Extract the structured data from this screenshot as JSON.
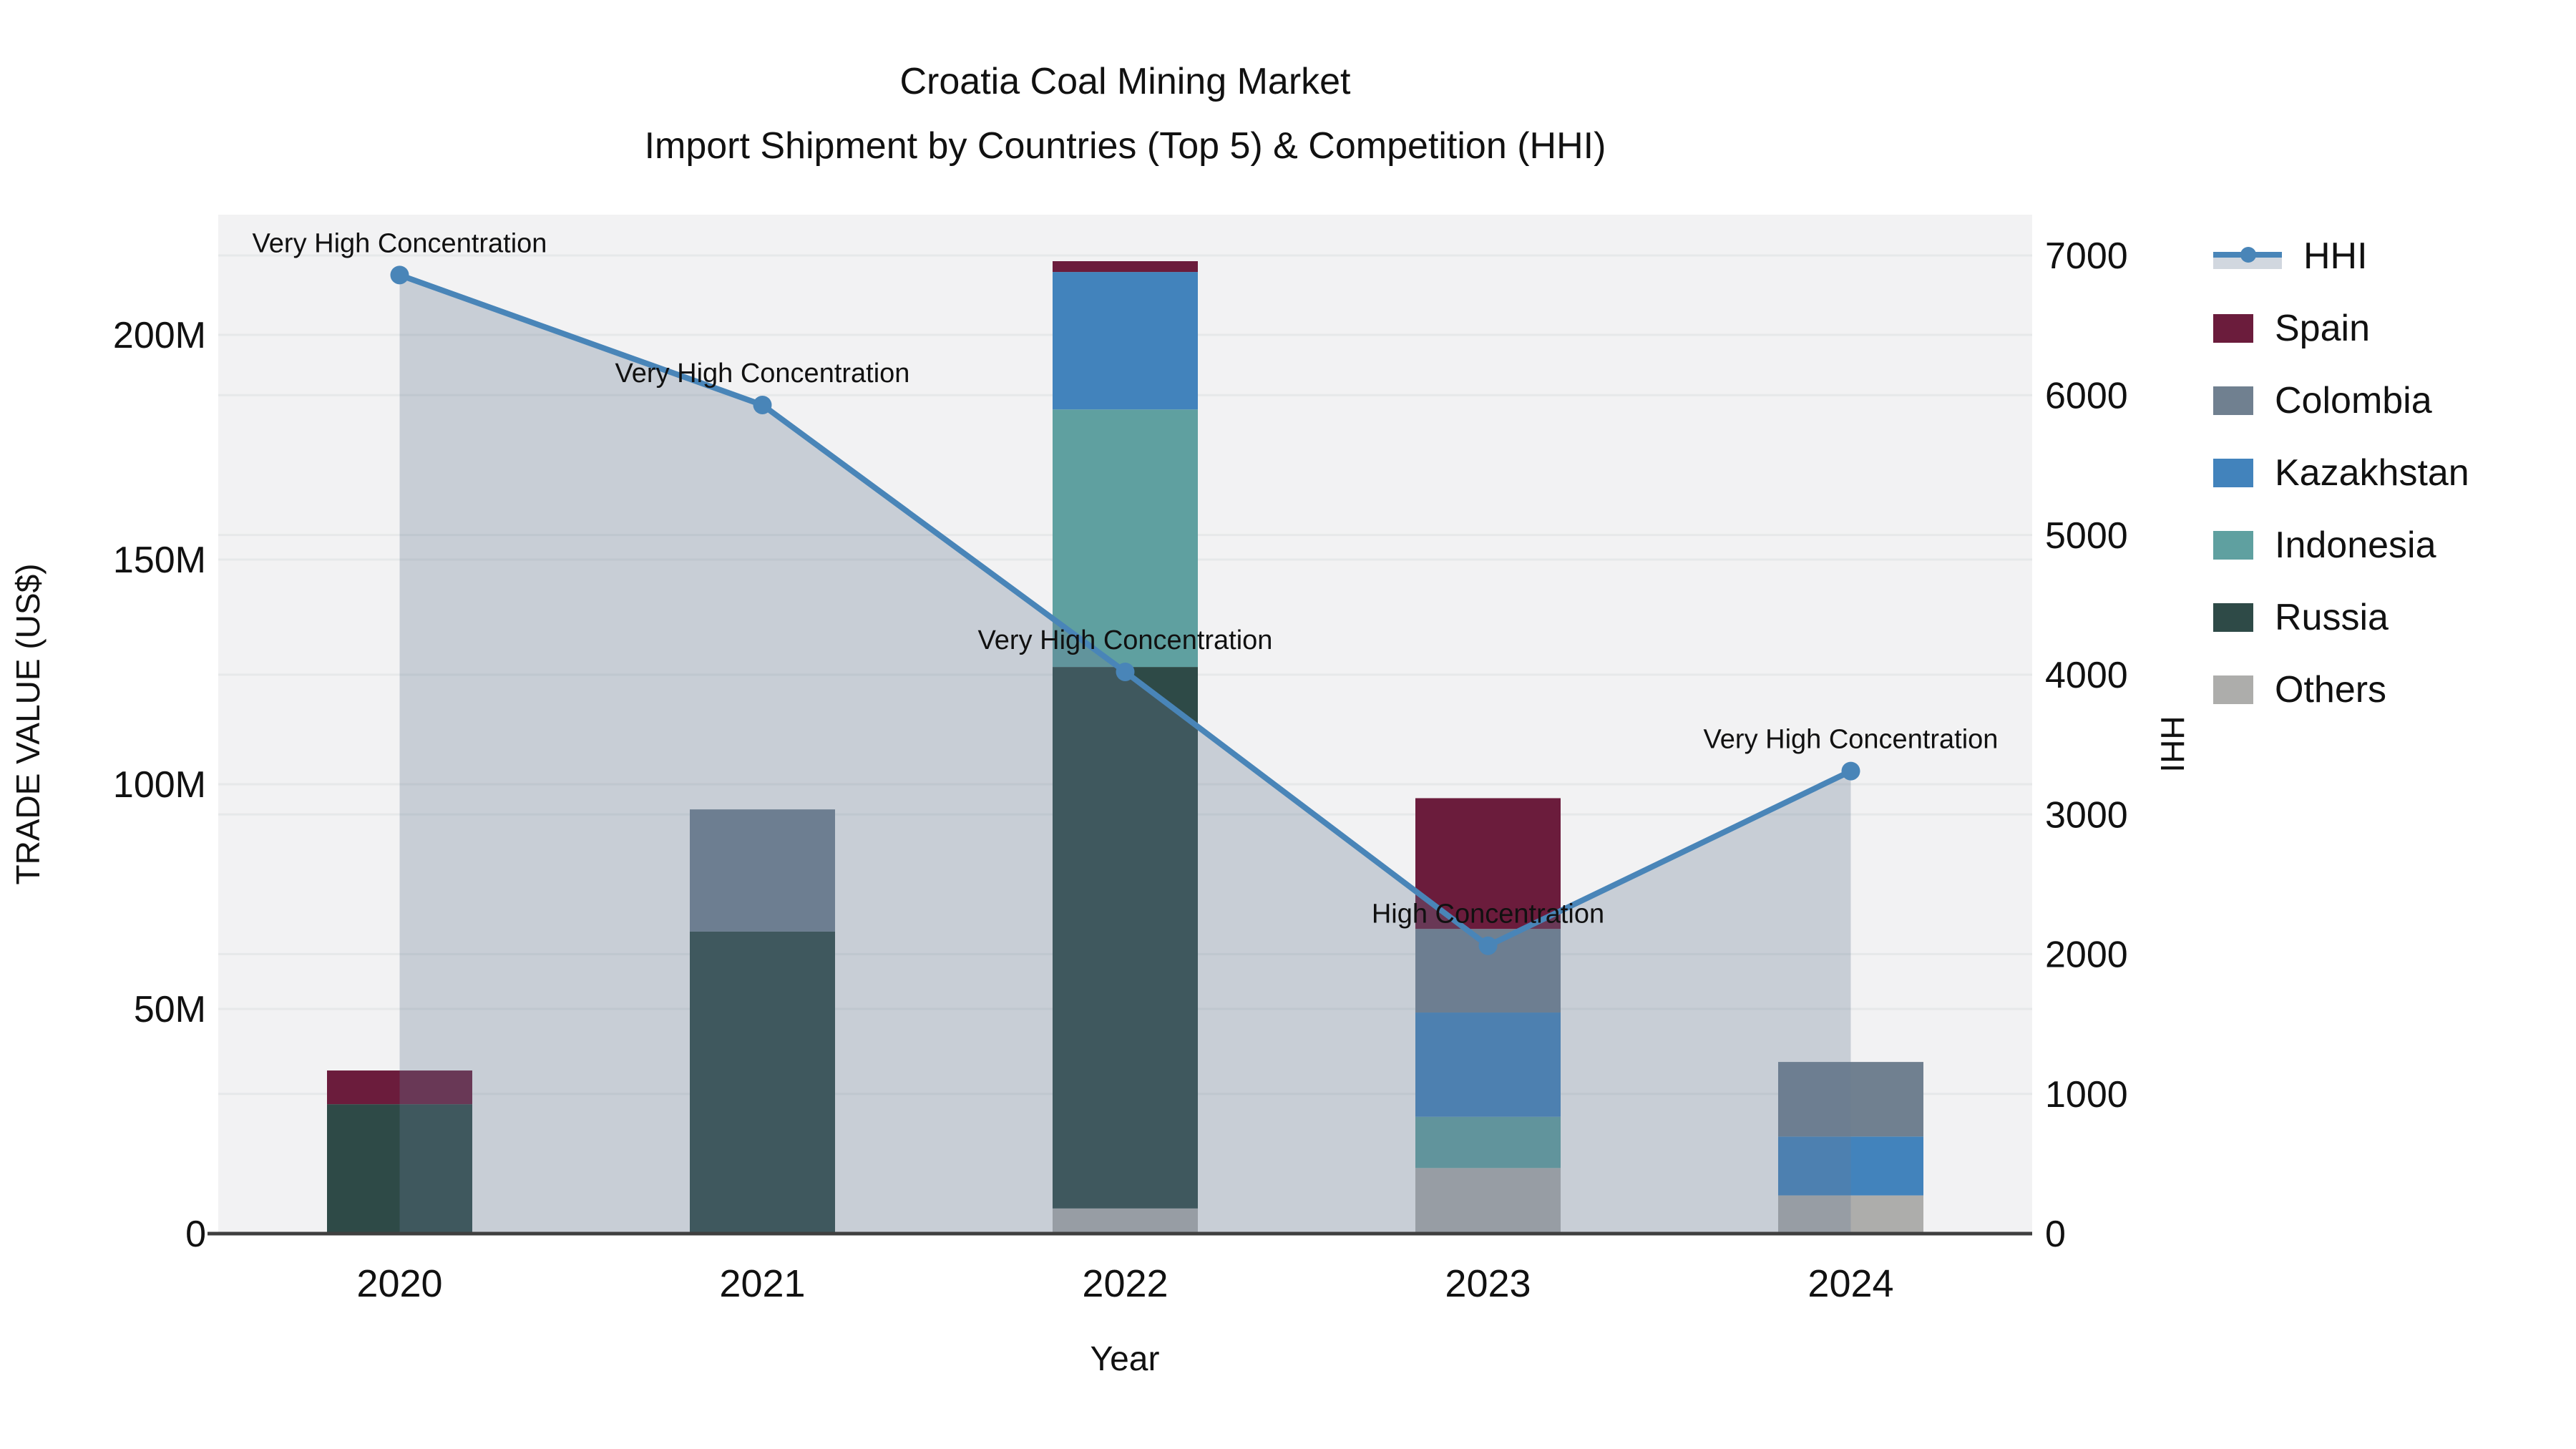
{
  "title": {
    "line1": "Croatia Coal Mining Market",
    "line2": "Import Shipment by Countries (Top 5) & Competition (HHI)"
  },
  "axes": {
    "left": {
      "label": "TRADE VALUE (US$)",
      "tick_labels": [
        "0",
        "50M",
        "100M",
        "150M",
        "200M"
      ],
      "tick_values": [
        0,
        50,
        100,
        150,
        200
      ]
    },
    "right": {
      "label": "HHI",
      "tick_labels": [
        "0",
        "1000",
        "2000",
        "3000",
        "4000",
        "5000",
        "6000",
        "7000"
      ],
      "tick_values": [
        0,
        1000,
        2000,
        3000,
        4000,
        5000,
        6000,
        7000
      ]
    },
    "x": {
      "label": "Year",
      "tick_labels": [
        "2020",
        "2021",
        "2022",
        "2023",
        "2024"
      ]
    }
  },
  "legend": {
    "items": [
      {
        "label": "HHI",
        "type": "line",
        "color": "#4985B8"
      },
      {
        "label": "Spain",
        "type": "box",
        "color": "#6B1C3C"
      },
      {
        "label": "Colombia",
        "type": "box",
        "color": "#708090"
      },
      {
        "label": "Kazakhstan",
        "type": "box",
        "color": "#4283BC"
      },
      {
        "label": "Indonesia",
        "type": "box",
        "color": "#5FA0A0"
      },
      {
        "label": "Russia",
        "type": "box",
        "color": "#2E4A47"
      },
      {
        "label": "Others",
        "type": "box",
        "color": "#ADADAB"
      }
    ]
  },
  "chart_data": {
    "type": "bar+line",
    "categories": [
      "2020",
      "2021",
      "2022",
      "2023",
      "2024"
    ],
    "bar_unit": "M US$ (trade value, left axis)",
    "series": [
      {
        "name": "Spain",
        "color": "#6B1C3C",
        "values": [
          7.5,
          0,
          2.4,
          29.1,
          0
        ]
      },
      {
        "name": "Colombia",
        "color": "#708090",
        "values": [
          0,
          27.2,
          0,
          18.6,
          16.6
        ]
      },
      {
        "name": "Kazakhstan",
        "color": "#4283BC",
        "values": [
          0,
          0,
          30.6,
          23.2,
          13.1
        ]
      },
      {
        "name": "Indonesia",
        "color": "#5FA0A0",
        "values": [
          0,
          0,
          57.3,
          11.4,
          0
        ]
      },
      {
        "name": "Russia",
        "color": "#2E4A47",
        "values": [
          28.8,
          67.2,
          120.5,
          0,
          0
        ]
      },
      {
        "name": "Others",
        "color": "#ADADAB",
        "values": [
          0,
          0,
          5.6,
          14.6,
          8.5
        ]
      }
    ],
    "stack_order_bottom_to_top": [
      "Others",
      "Russia",
      "Indonesia",
      "Kazakhstan",
      "Colombia",
      "Spain"
    ],
    "bar_totals": [
      36.3,
      94.4,
      216.4,
      96.9,
      38.2
    ],
    "hhi": {
      "name": "HHI",
      "axis": "right",
      "color": "#4985B8",
      "values": [
        6860,
        5930,
        4020,
        2060,
        3310
      ]
    },
    "annotations": [
      "Very High Concentration",
      "Very High Concentration",
      "Very High Concentration",
      "High Concentration",
      "Very High Concentration"
    ],
    "title": "Croatia Coal Mining Market — Import Shipment by Countries (Top 5) & Competition (HHI)",
    "xlabel": "Year",
    "ylabel_left": "TRADE VALUE (US$)",
    "ylabel_right": "HHI",
    "ylim_left": [
      0,
      200
    ],
    "ylim_right": [
      0,
      7000
    ],
    "grid": true,
    "legend_position": "right"
  },
  "colors": {
    "plot_bg": "#F2F2F3",
    "grid": "#E6E8E9",
    "axis_line": "#3F3F3F",
    "area_fill": "rgba(104,124,148,0.30)",
    "hhi_line": "#4985B8",
    "text": "#111111"
  }
}
